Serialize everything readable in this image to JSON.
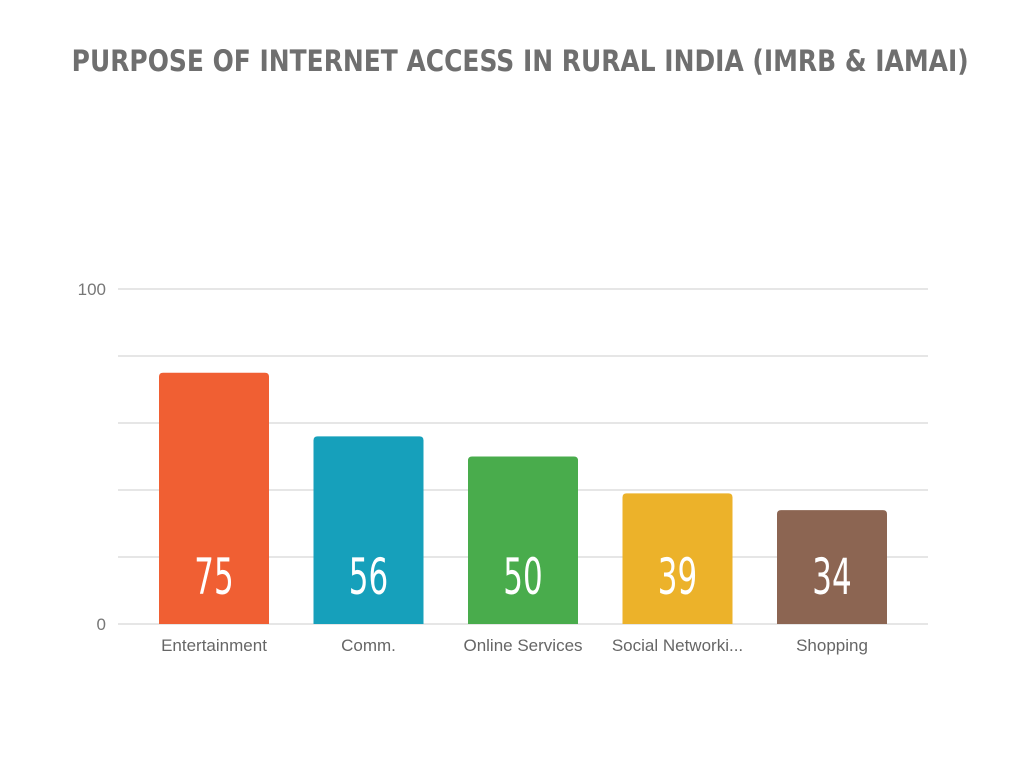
{
  "title": "PURPOSE OF INTERNET ACCESS IN RURAL INDIA (IMRB & IAMAI)",
  "chart_data": {
    "type": "bar",
    "title": "PURPOSE OF INTERNET ACCESS IN RURAL INDIA (IMRB & IAMAI)",
    "categories": [
      "Entertainment",
      "Comm.",
      "Online Services",
      "Social Networki...",
      "Shopping"
    ],
    "values": [
      75,
      56,
      50,
      39,
      34
    ],
    "value_labels": [
      "75",
      "56",
      "50",
      "39",
      "34"
    ],
    "colors": [
      "#f05f33",
      "#16a0bb",
      "#49ac4c",
      "#ecb22a",
      "#8c6552"
    ],
    "ylim": [
      0,
      100
    ],
    "y_tick_labels": [
      "100",
      "0"
    ],
    "gridlines": [
      0,
      20,
      40,
      60,
      80,
      100
    ],
    "grid": true,
    "legend": "none",
    "xlabel": "",
    "ylabel": ""
  }
}
